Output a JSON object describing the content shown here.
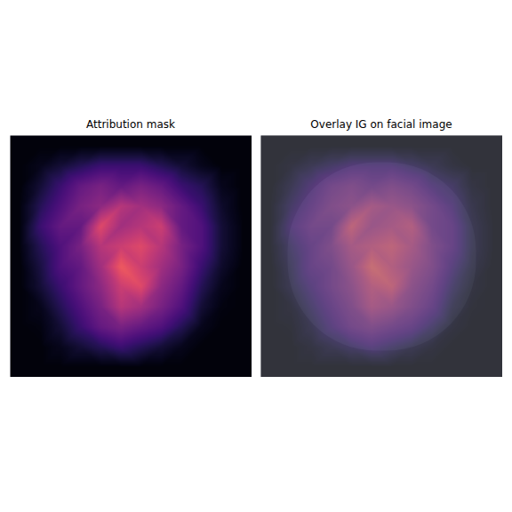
{
  "chart_data": [
    {
      "type": "heatmap",
      "title": "Attribution mask",
      "color": "magma",
      "zlim": [
        0,
        1
      ],
      "tick_labels": false,
      "cells": [
        [
          0.02,
          0.02,
          0.02,
          0.02,
          0.02,
          0.02,
          0.02,
          0.02,
          0.02,
          0.02,
          0.02,
          0.02
        ],
        [
          0.02,
          0.05,
          0.1,
          0.15,
          0.2,
          0.2,
          0.2,
          0.15,
          0.1,
          0.05,
          0.02,
          0.02
        ],
        [
          0.02,
          0.1,
          0.2,
          0.3,
          0.35,
          0.3,
          0.35,
          0.3,
          0.2,
          0.15,
          0.05,
          0.02
        ],
        [
          0.03,
          0.15,
          0.25,
          0.35,
          0.4,
          0.5,
          0.45,
          0.4,
          0.3,
          0.2,
          0.08,
          0.02
        ],
        [
          0.03,
          0.2,
          0.3,
          0.3,
          0.6,
          0.45,
          0.5,
          0.55,
          0.3,
          0.25,
          0.1,
          0.03
        ],
        [
          0.03,
          0.15,
          0.25,
          0.35,
          0.5,
          0.55,
          0.6,
          0.5,
          0.35,
          0.25,
          0.1,
          0.03
        ],
        [
          0.02,
          0.12,
          0.25,
          0.3,
          0.45,
          0.65,
          0.55,
          0.45,
          0.35,
          0.2,
          0.08,
          0.02
        ],
        [
          0.02,
          0.1,
          0.2,
          0.3,
          0.4,
          0.55,
          0.6,
          0.4,
          0.3,
          0.15,
          0.05,
          0.02
        ],
        [
          0.02,
          0.05,
          0.15,
          0.25,
          0.35,
          0.5,
          0.45,
          0.35,
          0.25,
          0.1,
          0.03,
          0.02
        ],
        [
          0.02,
          0.03,
          0.1,
          0.2,
          0.3,
          0.35,
          0.3,
          0.25,
          0.15,
          0.05,
          0.02,
          0.02
        ],
        [
          0.02,
          0.02,
          0.05,
          0.1,
          0.15,
          0.2,
          0.15,
          0.1,
          0.05,
          0.02,
          0.02,
          0.02
        ],
        [
          0.02,
          0.02,
          0.02,
          0.02,
          0.02,
          0.02,
          0.02,
          0.02,
          0.02,
          0.02,
          0.02,
          0.02
        ]
      ]
    },
    {
      "type": "overlay",
      "title": "Overlay IG on facial image",
      "color": "magma",
      "zlim": [
        0,
        1
      ],
      "tick_labels": false,
      "cells": [
        [
          0.02,
          0.02,
          0.02,
          0.02,
          0.02,
          0.02,
          0.02,
          0.02,
          0.02,
          0.02,
          0.02,
          0.02
        ],
        [
          0.02,
          0.05,
          0.1,
          0.15,
          0.2,
          0.2,
          0.2,
          0.15,
          0.1,
          0.05,
          0.02,
          0.02
        ],
        [
          0.02,
          0.1,
          0.2,
          0.3,
          0.35,
          0.3,
          0.35,
          0.3,
          0.2,
          0.15,
          0.05,
          0.02
        ],
        [
          0.03,
          0.15,
          0.25,
          0.35,
          0.4,
          0.5,
          0.45,
          0.4,
          0.3,
          0.2,
          0.08,
          0.02
        ],
        [
          0.03,
          0.2,
          0.3,
          0.3,
          0.6,
          0.45,
          0.5,
          0.55,
          0.3,
          0.25,
          0.1,
          0.03
        ],
        [
          0.03,
          0.15,
          0.25,
          0.35,
          0.5,
          0.55,
          0.6,
          0.5,
          0.35,
          0.25,
          0.1,
          0.03
        ],
        [
          0.02,
          0.12,
          0.25,
          0.3,
          0.45,
          0.65,
          0.55,
          0.45,
          0.35,
          0.2,
          0.08,
          0.02
        ],
        [
          0.02,
          0.1,
          0.2,
          0.3,
          0.4,
          0.55,
          0.6,
          0.4,
          0.3,
          0.15,
          0.05,
          0.02
        ],
        [
          0.02,
          0.05,
          0.15,
          0.25,
          0.35,
          0.5,
          0.45,
          0.35,
          0.25,
          0.1,
          0.03,
          0.02
        ],
        [
          0.02,
          0.03,
          0.1,
          0.2,
          0.3,
          0.35,
          0.3,
          0.25,
          0.15,
          0.05,
          0.02,
          0.02
        ],
        [
          0.02,
          0.02,
          0.05,
          0.1,
          0.15,
          0.2,
          0.15,
          0.1,
          0.05,
          0.02,
          0.02,
          0.02
        ],
        [
          0.02,
          0.02,
          0.02,
          0.02,
          0.02,
          0.02,
          0.02,
          0.02,
          0.02,
          0.02,
          0.02,
          0.02
        ]
      ]
    }
  ]
}
